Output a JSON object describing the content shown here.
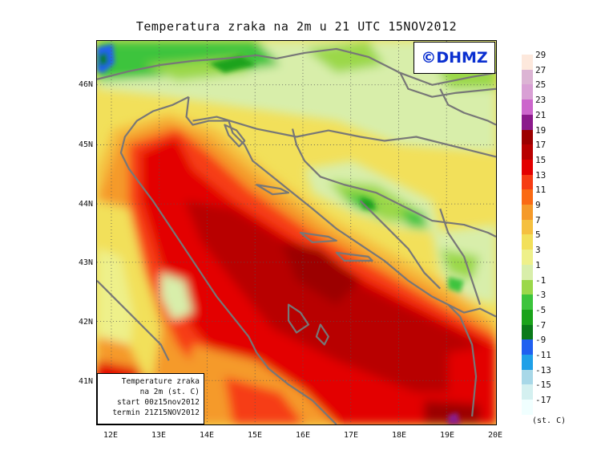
{
  "title": "Temperatura zraka na 2m u 21 UTC 15NOV2012",
  "logo": "©DHMZ",
  "info_box": [
    "Temperature zraka",
    "na 2m (st. C)",
    "start 00z15nov2012",
    "termin 21Z15NOV2012"
  ],
  "map": {
    "lat_ticks": [
      "46N",
      "45N",
      "44N",
      "43N",
      "42N",
      "41N"
    ],
    "lon_ticks": [
      "12E",
      "13E",
      "14E",
      "15E",
      "16E",
      "17E",
      "18E",
      "19E",
      "20E"
    ],
    "lat_range": [
      40.3,
      46.8
    ],
    "lon_range": [
      11.7,
      20.0
    ]
  },
  "legend": {
    "labels": [
      "29",
      "27",
      "25",
      "23",
      "21",
      "19",
      "17",
      "15",
      "13",
      "11",
      "9",
      "7",
      "5",
      "3",
      "1",
      "-1",
      "-3",
      "-5",
      "-7",
      "-9",
      "-11",
      "-13",
      "-15",
      "-17"
    ],
    "colors": [
      "#fde8dc",
      "#dcb4d4",
      "#d9a0d5",
      "#cc66cc",
      "#8b1a8b",
      "#9c0000",
      "#b80000",
      "#e30000",
      "#f63c14",
      "#fa6a14",
      "#f59a2a",
      "#f5c040",
      "#f2e05a",
      "#eef08a",
      "#d8eeaa",
      "#9bd84a",
      "#3cc43c",
      "#1aa31a",
      "#0a7a1a",
      "#2060f0",
      "#20a0e8",
      "#a8d8e8",
      "#d4f0f0",
      "#f0ffff"
    ],
    "unit": "(st. C)"
  }
}
